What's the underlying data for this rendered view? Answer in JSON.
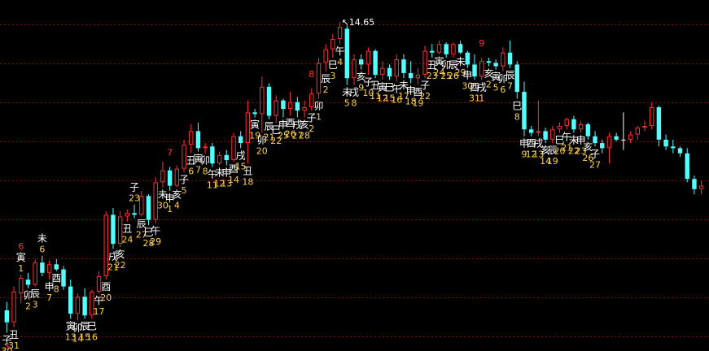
{
  "chart_data": {
    "type": "candlestick",
    "title": "",
    "xlabel": "",
    "ylabel": "",
    "ylim": [
      5.2,
      15.1
    ],
    "grid": true,
    "max_annotation": "14.65",
    "colors": {
      "background": "#000000",
      "grid": "#7a1414",
      "up": "#ff3030",
      "down": "#54ffff",
      "neutral": "#ffffff",
      "label_branch": "#ffffff",
      "label_day": "#ffd24a",
      "label_red": "#ff3030",
      "marker": "#ff3030"
    },
    "candles": [
      {
        "o": 6.2,
        "h": 6.45,
        "l": 5.55,
        "c": 5.85
      },
      {
        "o": 5.85,
        "h": 6.9,
        "l": 5.7,
        "c": 6.75
      },
      {
        "o": 6.7,
        "h": 7.25,
        "l": 6.4,
        "c": 7.15
      },
      {
        "o": 7.1,
        "h": 7.3,
        "l": 6.85,
        "c": 6.95
      },
      {
        "o": 6.95,
        "h": 7.7,
        "l": 6.9,
        "c": 7.6
      },
      {
        "o": 7.6,
        "h": 7.8,
        "l": 7.2,
        "c": 7.3
      },
      {
        "o": 7.3,
        "h": 7.65,
        "l": 7.1,
        "c": 7.55
      },
      {
        "o": 7.55,
        "h": 7.7,
        "l": 7.35,
        "c": 7.4
      },
      {
        "o": 7.4,
        "h": 7.5,
        "l": 6.8,
        "c": 6.9
      },
      {
        "o": 6.9,
        "h": 7.1,
        "l": 5.95,
        "c": 6.1
      },
      {
        "o": 6.1,
        "h": 6.7,
        "l": 5.9,
        "c": 6.6
      },
      {
        "o": 6.6,
        "h": 6.85,
        "l": 5.95,
        "c": 6.05
      },
      {
        "o": 6.05,
        "h": 6.8,
        "l": 5.95,
        "c": 6.75
      },
      {
        "o": 6.75,
        "h": 7.35,
        "l": 6.7,
        "c": 7.2
      },
      {
        "o": 7.2,
        "h": 9.1,
        "l": 7.1,
        "c": 9.0
      },
      {
        "o": 9.0,
        "h": 9.2,
        "l": 8.0,
        "c": 8.15
      },
      {
        "o": 8.15,
        "h": 9.1,
        "l": 8.05,
        "c": 8.95
      },
      {
        "o": 8.95,
        "h": 9.15,
        "l": 8.8,
        "c": 9.05
      },
      {
        "o": 9.05,
        "h": 9.3,
        "l": 8.9,
        "c": 9.0
      },
      {
        "o": 9.0,
        "h": 9.7,
        "l": 8.95,
        "c": 9.55
      },
      {
        "o": 9.55,
        "h": 9.6,
        "l": 8.7,
        "c": 8.85
      },
      {
        "o": 8.85,
        "h": 10.1,
        "l": 8.75,
        "c": 9.95
      },
      {
        "o": 9.95,
        "h": 10.55,
        "l": 9.8,
        "c": 10.3
      },
      {
        "o": 10.3,
        "h": 10.4,
        "l": 9.7,
        "c": 9.85
      },
      {
        "o": 9.85,
        "h": 10.45,
        "l": 9.8,
        "c": 10.35
      },
      {
        "o": 10.35,
        "h": 11.2,
        "l": 10.25,
        "c": 11.05
      },
      {
        "o": 11.05,
        "h": 11.65,
        "l": 10.8,
        "c": 11.45
      },
      {
        "o": 11.45,
        "h": 11.7,
        "l": 10.85,
        "c": 10.95
      },
      {
        "o": 10.95,
        "h": 11.1,
        "l": 10.8,
        "c": 11.0
      },
      {
        "o": 11.0,
        "h": 11.1,
        "l": 10.4,
        "c": 10.5
      },
      {
        "o": 10.5,
        "h": 10.85,
        "l": 10.45,
        "c": 10.75
      },
      {
        "o": 10.75,
        "h": 10.9,
        "l": 10.45,
        "c": 10.6
      },
      {
        "o": 10.6,
        "h": 11.4,
        "l": 10.55,
        "c": 11.3
      },
      {
        "o": 11.3,
        "h": 11.45,
        "l": 10.95,
        "c": 11.1
      },
      {
        "o": 11.1,
        "h": 12.35,
        "l": 10.5,
        "c": 12.0
      },
      {
        "o": 12.0,
        "h": 12.1,
        "l": 11.85,
        "c": 11.95
      },
      {
        "o": 11.95,
        "h": 13.05,
        "l": 11.4,
        "c": 12.75
      },
      {
        "o": 12.75,
        "h": 12.85,
        "l": 11.8,
        "c": 11.9
      },
      {
        "o": 11.9,
        "h": 12.5,
        "l": 11.7,
        "c": 12.35
      },
      {
        "o": 12.35,
        "h": 12.4,
        "l": 11.85,
        "c": 12.1
      },
      {
        "o": 12.1,
        "h": 12.6,
        "l": 11.9,
        "c": 12.3
      },
      {
        "o": 12.3,
        "h": 12.45,
        "l": 11.85,
        "c": 12.05
      },
      {
        "o": 12.05,
        "h": 12.35,
        "l": 11.85,
        "c": 12.15
      },
      {
        "o": 12.15,
        "h": 12.7,
        "l": 12.05,
        "c": 12.55
      },
      {
        "o": 12.55,
        "h": 13.6,
        "l": 12.4,
        "c": 13.45
      },
      {
        "o": 13.45,
        "h": 14.0,
        "l": 13.2,
        "c": 13.85
      },
      {
        "o": 13.85,
        "h": 14.3,
        "l": 13.6,
        "c": 14.15
      },
      {
        "o": 14.15,
        "h": 14.65,
        "l": 14.0,
        "c": 14.5
      },
      {
        "o": 14.45,
        "h": 14.55,
        "l": 12.8,
        "c": 13.0
      },
      {
        "o": 13.0,
        "h": 13.7,
        "l": 12.8,
        "c": 13.55
      },
      {
        "o": 13.55,
        "h": 13.7,
        "l": 13.25,
        "c": 13.4
      },
      {
        "o": 13.4,
        "h": 13.9,
        "l": 13.1,
        "c": 13.8
      },
      {
        "o": 13.8,
        "h": 13.85,
        "l": 13.0,
        "c": 13.1
      },
      {
        "o": 13.1,
        "h": 13.5,
        "l": 12.95,
        "c": 13.3
      },
      {
        "o": 13.3,
        "h": 13.4,
        "l": 12.95,
        "c": 13.05
      },
      {
        "o": 13.05,
        "h": 13.7,
        "l": 12.9,
        "c": 13.55
      },
      {
        "o": 13.55,
        "h": 13.7,
        "l": 13.0,
        "c": 13.15
      },
      {
        "o": 13.15,
        "h": 13.5,
        "l": 12.85,
        "c": 13.0
      },
      {
        "o": 13.0,
        "h": 13.3,
        "l": 12.8,
        "c": 13.1
      },
      {
        "o": 13.1,
        "h": 13.95,
        "l": 13.0,
        "c": 13.8
      },
      {
        "o": 13.8,
        "h": 14.0,
        "l": 13.6,
        "c": 13.75
      },
      {
        "o": 13.75,
        "h": 14.1,
        "l": 13.7,
        "c": 14.0
      },
      {
        "o": 14.0,
        "h": 14.05,
        "l": 13.6,
        "c": 13.7
      },
      {
        "o": 13.7,
        "h": 14.05,
        "l": 13.6,
        "c": 14.0
      },
      {
        "o": 14.0,
        "h": 14.1,
        "l": 13.7,
        "c": 13.75
      },
      {
        "o": 13.75,
        "h": 13.8,
        "l": 13.3,
        "c": 13.4
      },
      {
        "o": 13.4,
        "h": 13.7,
        "l": 12.95,
        "c": 13.05
      },
      {
        "o": 13.05,
        "h": 13.6,
        "l": 12.95,
        "c": 13.5
      },
      {
        "o": 13.5,
        "h": 13.6,
        "l": 13.35,
        "c": 13.45
      },
      {
        "o": 13.45,
        "h": 13.55,
        "l": 13.25,
        "c": 13.35
      },
      {
        "o": 13.35,
        "h": 13.9,
        "l": 13.2,
        "c": 13.75
      },
      {
        "o": 13.75,
        "h": 14.1,
        "l": 13.3,
        "c": 13.4
      },
      {
        "o": 13.4,
        "h": 13.5,
        "l": 12.4,
        "c": 12.6
      },
      {
        "o": 12.6,
        "h": 12.9,
        "l": 11.3,
        "c": 11.5
      },
      {
        "o": 11.5,
        "h": 11.6,
        "l": 11.3,
        "c": 11.4
      },
      {
        "o": 11.4,
        "h": 12.35,
        "l": 11.3,
        "c": 11.45
      },
      {
        "o": 11.45,
        "h": 11.55,
        "l": 11.1,
        "c": 11.2
      },
      {
        "o": 11.2,
        "h": 11.6,
        "l": 11.1,
        "c": 11.5
      },
      {
        "o": 11.5,
        "h": 11.7,
        "l": 11.4,
        "c": 11.6
      },
      {
        "o": 11.6,
        "h": 11.85,
        "l": 11.5,
        "c": 11.8
      },
      {
        "o": 11.8,
        "h": 11.9,
        "l": 11.4,
        "c": 11.5
      },
      {
        "o": 11.5,
        "h": 11.75,
        "l": 11.4,
        "c": 11.65
      },
      {
        "o": 11.65,
        "h": 11.7,
        "l": 11.2,
        "c": 11.3
      },
      {
        "o": 11.3,
        "h": 11.45,
        "l": 11.0,
        "c": 11.1
      },
      {
        "o": 11.1,
        "h": 11.2,
        "l": 10.8,
        "c": 10.95
      },
      {
        "o": 10.95,
        "h": 11.4,
        "l": 10.5,
        "c": 11.3
      },
      {
        "o": 11.3,
        "h": 11.4,
        "l": 11.15,
        "c": 11.2
      },
      {
        "o": 11.2,
        "h": 12.0,
        "l": 10.9,
        "c": 11.2
      },
      {
        "o": 11.2,
        "h": 11.45,
        "l": 11.1,
        "c": 11.35
      },
      {
        "o": 11.35,
        "h": 11.6,
        "l": 11.2,
        "c": 11.55
      },
      {
        "o": 11.55,
        "h": 11.75,
        "l": 11.45,
        "c": 11.6
      },
      {
        "o": 11.6,
        "h": 12.3,
        "l": 11.5,
        "c": 12.15
      },
      {
        "o": 12.15,
        "h": 12.2,
        "l": 11.0,
        "c": 11.2
      },
      {
        "o": 11.2,
        "h": 11.35,
        "l": 10.9,
        "c": 11.0
      },
      {
        "o": 11.0,
        "h": 11.2,
        "l": 10.8,
        "c": 10.95
      },
      {
        "o": 10.95,
        "h": 11.0,
        "l": 10.7,
        "c": 10.8
      },
      {
        "o": 10.8,
        "h": 10.95,
        "l": 9.95,
        "c": 10.05
      },
      {
        "o": 10.05,
        "h": 10.15,
        "l": 9.6,
        "c": 9.75
      },
      {
        "o": 9.75,
        "h": 10.0,
        "l": 9.6,
        "c": 9.85
      }
    ],
    "labels": [
      {
        "i": 0,
        "branch": "子",
        "day": "30",
        "pos": "below"
      },
      {
        "i": 1,
        "branch": "丑",
        "day": "31",
        "pos": "below"
      },
      {
        "i": 2,
        "branch": "寅",
        "day": "1",
        "pos": "above",
        "marker": "6"
      },
      {
        "i": 3,
        "branch": "卯",
        "day": "2",
        "pos": "below"
      },
      {
        "i": 4,
        "branch": "辰",
        "day": "3",
        "pos": "below"
      },
      {
        "i": 5,
        "branch": "未",
        "day": "6",
        "pos": "above"
      },
      {
        "i": 6,
        "branch": "申",
        "day": "7",
        "pos": "below"
      },
      {
        "i": 7,
        "branch": "酉",
        "day": "8",
        "pos": "below"
      },
      {
        "i": 9,
        "branch": "寅",
        "day": "13",
        "pos": "below"
      },
      {
        "i": 10,
        "branch": "卯",
        "day": "14",
        "pos": "below"
      },
      {
        "i": 11,
        "branch": "辰",
        "day": "15",
        "pos": "below"
      },
      {
        "i": 12,
        "branch": "巳",
        "day": "16",
        "pos": "below"
      },
      {
        "i": 13,
        "branch": "午",
        "day": "17",
        "pos": "below"
      },
      {
        "i": 14,
        "branch": "酉",
        "day": "20",
        "pos": "below"
      },
      {
        "i": 15,
        "branch": "戌",
        "day": "21",
        "pos": "below"
      },
      {
        "i": 16,
        "branch": "亥",
        "day": "22",
        "pos": "below"
      },
      {
        "i": 17,
        "branch": "丑",
        "day": "24",
        "pos": "below"
      },
      {
        "i": 18,
        "branch": "子",
        "day": "23",
        "pos": "above"
      },
      {
        "i": 19,
        "branch": "辰",
        "day": "27",
        "pos": "below"
      },
      {
        "i": 20,
        "branch": "巳",
        "day": "28",
        "pos": "below"
      },
      {
        "i": 21,
        "branch": "午",
        "day": "29",
        "pos": "below"
      },
      {
        "i": 22,
        "branch": "未",
        "day": "30",
        "pos": "below"
      },
      {
        "i": 23,
        "branch": "申",
        "day": "1",
        "pos": "below",
        "marker": "7"
      },
      {
        "i": 24,
        "branch": "亥",
        "day": "4",
        "pos": "below"
      },
      {
        "i": 25,
        "branch": "子",
        "day": "5",
        "pos": "below"
      },
      {
        "i": 26,
        "branch": "丑",
        "day": "6",
        "pos": "below"
      },
      {
        "i": 27,
        "branch": "寅",
        "day": "7",
        "pos": "below"
      },
      {
        "i": 28,
        "branch": "卯",
        "day": "8",
        "pos": "below"
      },
      {
        "i": 29,
        "branch": "午",
        "day": "11",
        "pos": "below"
      },
      {
        "i": 30,
        "branch": "未",
        "day": "12",
        "pos": "below"
      },
      {
        "i": 31,
        "branch": "申",
        "day": "13",
        "pos": "below"
      },
      {
        "i": 32,
        "branch": "酉",
        "day": "14",
        "pos": "below"
      },
      {
        "i": 33,
        "branch": "戌",
        "day": "15",
        "pos": "below"
      },
      {
        "i": 34,
        "branch": "丑",
        "day": "18",
        "pos": "below"
      },
      {
        "i": 35,
        "branch": "寅",
        "day": "19",
        "pos": "below"
      },
      {
        "i": 36,
        "branch": "卯",
        "day": "20",
        "pos": "below"
      },
      {
        "i": 37,
        "branch": "辰",
        "day": "21",
        "pos": "below"
      },
      {
        "i": 38,
        "branch": "巳",
        "day": "22",
        "pos": "below"
      },
      {
        "i": 39,
        "branch": "申",
        "day": "25",
        "pos": "below"
      },
      {
        "i": 40,
        "branch": "酉",
        "day": "26",
        "pos": "below"
      },
      {
        "i": 41,
        "branch": "戌",
        "day": "27",
        "pos": "below"
      },
      {
        "i": 42,
        "branch": "亥",
        "day": "28",
        "pos": "below"
      },
      {
        "i": 43,
        "branch": "子",
        "day": "2",
        "pos": "below",
        "marker": "8"
      },
      {
        "i": 44,
        "branch": "卯",
        "day": "1",
        "pos": "below"
      },
      {
        "i": 45,
        "branch": "辰",
        "day": "2",
        "pos": "below"
      },
      {
        "i": 46,
        "branch": "巳",
        "day": "3",
        "pos": "below"
      },
      {
        "i": 47,
        "branch": "午",
        "day": "4",
        "pos": "below"
      },
      {
        "i": 48,
        "branch": "未",
        "day": "5",
        "pos": "below"
      },
      {
        "i": 49,
        "branch": "戌",
        "day": "8",
        "pos": "below"
      },
      {
        "i": 50,
        "branch": "亥",
        "day": "9",
        "pos": "below"
      },
      {
        "i": 51,
        "branch": "子",
        "day": "10",
        "pos": "below"
      },
      {
        "i": 52,
        "branch": "丑",
        "day": "11",
        "pos": "below"
      },
      {
        "i": 53,
        "branch": "寅",
        "day": "12",
        "pos": "below"
      },
      {
        "i": 54,
        "branch": "巳",
        "day": "15",
        "pos": "below"
      },
      {
        "i": 55,
        "branch": "午",
        "day": "16",
        "pos": "below"
      },
      {
        "i": 56,
        "branch": "未",
        "day": "17",
        "pos": "below"
      },
      {
        "i": 57,
        "branch": "申",
        "day": "18",
        "pos": "below"
      },
      {
        "i": 58,
        "branch": "酉",
        "day": "19",
        "pos": "below"
      },
      {
        "i": 59,
        "branch": "子",
        "day": "22",
        "pos": "below"
      },
      {
        "i": 60,
        "branch": "丑",
        "day": "23",
        "pos": "below"
      },
      {
        "i": 61,
        "branch": "寅",
        "day": "24",
        "pos": "below"
      },
      {
        "i": 62,
        "branch": "卯",
        "day": "25",
        "pos": "below"
      },
      {
        "i": 63,
        "branch": "辰",
        "day": "26",
        "pos": "below"
      },
      {
        "i": 64,
        "branch": "未",
        "day": "29",
        "pos": "below"
      },
      {
        "i": 65,
        "branch": "申",
        "day": "30",
        "pos": "below"
      },
      {
        "i": 66,
        "branch": "酉",
        "day": "31",
        "pos": "below"
      },
      {
        "i": 67,
        "branch": "戌",
        "day": "1",
        "pos": "below",
        "marker": "9"
      },
      {
        "i": 68,
        "branch": "亥",
        "day": "2",
        "pos": "below"
      },
      {
        "i": 69,
        "branch": "寅",
        "day": "5",
        "pos": "below"
      },
      {
        "i": 70,
        "branch": "卯",
        "day": "6",
        "pos": "below"
      },
      {
        "i": 71,
        "branch": "辰",
        "day": "7",
        "pos": "below"
      },
      {
        "i": 72,
        "branch": "巳",
        "day": "8",
        "pos": "below"
      },
      {
        "i": 73,
        "branch": "申",
        "day": "9",
        "pos": "below"
      },
      {
        "i": 74,
        "branch": "酉",
        "day": "12",
        "pos": "below"
      },
      {
        "i": 75,
        "branch": "戌",
        "day": "13",
        "pos": "below"
      },
      {
        "i": 76,
        "branch": "亥",
        "day": "14",
        "pos": "below"
      },
      {
        "i": 77,
        "branch": "辰",
        "day": "19",
        "pos": "below"
      },
      {
        "i": 78,
        "branch": "巳",
        "day": "20",
        "pos": "below"
      },
      {
        "i": 79,
        "branch": "午",
        "day": "21",
        "pos": "below"
      },
      {
        "i": 80,
        "branch": "未",
        "day": "22",
        "pos": "below"
      },
      {
        "i": 81,
        "branch": "申",
        "day": "23",
        "pos": "below"
      },
      {
        "i": 82,
        "branch": "亥",
        "day": "26",
        "pos": "below"
      },
      {
        "i": 83,
        "branch": "子",
        "day": "27",
        "pos": "below"
      }
    ]
  }
}
